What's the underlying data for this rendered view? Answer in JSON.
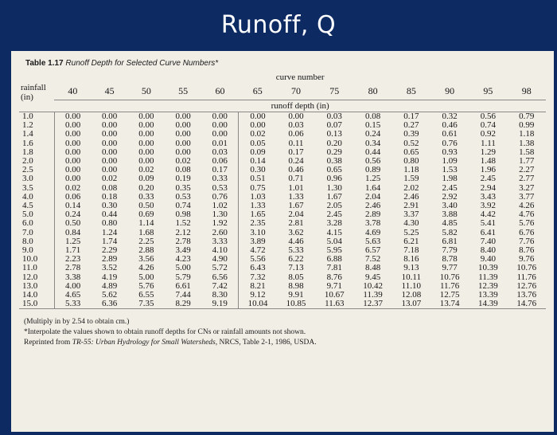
{
  "slide_title": "Runoff, Q",
  "caption": {
    "label": "Table 1.17",
    "text": "Runoff Depth for Selected Curve Numbers*"
  },
  "table": {
    "curve_number_label": "curve number",
    "runoff_depth_label": "runoff depth (in)",
    "rainfall_label_1": "rainfall",
    "rainfall_label_2": "(in)",
    "curve_numbers": [
      "40",
      "45",
      "50",
      "55",
      "60",
      "65",
      "70",
      "75",
      "80",
      "85",
      "90",
      "95",
      "98"
    ],
    "rows": [
      {
        "rain": "1.0",
        "values": [
          "0.00",
          "0.00",
          "0.00",
          "0.00",
          "0.00",
          "0.00",
          "0.00",
          "0.03",
          "0.08",
          "0.17",
          "0.32",
          "0.56",
          "0.79"
        ]
      },
      {
        "rain": "1.2",
        "values": [
          "0.00",
          "0.00",
          "0.00",
          "0.00",
          "0.00",
          "0.00",
          "0.03",
          "0.07",
          "0.15",
          "0.27",
          "0.46",
          "0.74",
          "0.99"
        ]
      },
      {
        "rain": "1.4",
        "values": [
          "0.00",
          "0.00",
          "0.00",
          "0.00",
          "0.00",
          "0.02",
          "0.06",
          "0.13",
          "0.24",
          "0.39",
          "0.61",
          "0.92",
          "1.18"
        ]
      },
      {
        "rain": "1.6",
        "values": [
          "0.00",
          "0.00",
          "0.00",
          "0.00",
          "0.01",
          "0.05",
          "0.11",
          "0.20",
          "0.34",
          "0.52",
          "0.76",
          "1.11",
          "1.38"
        ]
      },
      {
        "rain": "1.8",
        "values": [
          "0.00",
          "0.00",
          "0.00",
          "0.00",
          "0.03",
          "0.09",
          "0.17",
          "0.29",
          "0.44",
          "0.65",
          "0.93",
          "1.29",
          "1.58"
        ]
      },
      {
        "rain": "2.0",
        "values": [
          "0.00",
          "0.00",
          "0.00",
          "0.02",
          "0.06",
          "0.14",
          "0.24",
          "0.38",
          "0.56",
          "0.80",
          "1.09",
          "1.48",
          "1.77"
        ]
      },
      {
        "rain": "2.5",
        "values": [
          "0.00",
          "0.00",
          "0.02",
          "0.08",
          "0.17",
          "0.30",
          "0.46",
          "0.65",
          "0.89",
          "1.18",
          "1.53",
          "1.96",
          "2.27"
        ]
      },
      {
        "rain": "3.0",
        "values": [
          "0.00",
          "0.02",
          "0.09",
          "0.19",
          "0.33",
          "0.51",
          "0.71",
          "0.96",
          "1.25",
          "1.59",
          "1.98",
          "2.45",
          "2.77"
        ]
      },
      {
        "rain": "3.5",
        "values": [
          "0.02",
          "0.08",
          "0.20",
          "0.35",
          "0.53",
          "0.75",
          "1.01",
          "1.30",
          "1.64",
          "2.02",
          "2.45",
          "2.94",
          "3.27"
        ]
      },
      {
        "rain": "4.0",
        "values": [
          "0.06",
          "0.18",
          "0.33",
          "0.53",
          "0.76",
          "1.03",
          "1.33",
          "1.67",
          "2.04",
          "2.46",
          "2.92",
          "3.43",
          "3.77"
        ]
      },
      {
        "rain": "4.5",
        "values": [
          "0.14",
          "0.30",
          "0.50",
          "0.74",
          "1.02",
          "1.33",
          "1.67",
          "2.05",
          "2.46",
          "2.91",
          "3.40",
          "3.92",
          "4.26"
        ]
      },
      {
        "rain": "5.0",
        "values": [
          "0.24",
          "0.44",
          "0.69",
          "0.98",
          "1.30",
          "1.65",
          "2.04",
          "2.45",
          "2.89",
          "3.37",
          "3.88",
          "4.42",
          "4.76"
        ]
      },
      {
        "rain": "6.0",
        "values": [
          "0.50",
          "0.80",
          "1.14",
          "1.52",
          "1.92",
          "2.35",
          "2.81",
          "3.28",
          "3.78",
          "4.30",
          "4.85",
          "5.41",
          "5.76"
        ]
      },
      {
        "rain": "7.0",
        "values": [
          "0.84",
          "1.24",
          "1.68",
          "2.12",
          "2.60",
          "3.10",
          "3.62",
          "4.15",
          "4.69",
          "5.25",
          "5.82",
          "6.41",
          "6.76"
        ]
      },
      {
        "rain": "8.0",
        "values": [
          "1.25",
          "1.74",
          "2.25",
          "2.78",
          "3.33",
          "3.89",
          "4.46",
          "5.04",
          "5.63",
          "6.21",
          "6.81",
          "7.40",
          "7.76"
        ]
      },
      {
        "rain": "9.0",
        "values": [
          "1.71",
          "2.29",
          "2.88",
          "3.49",
          "4.10",
          "4.72",
          "5.33",
          "5.95",
          "6.57",
          "7.18",
          "7.79",
          "8.40",
          "8.76"
        ]
      },
      {
        "rain": "10.0",
        "values": [
          "2.23",
          "2.89",
          "3.56",
          "4.23",
          "4.90",
          "5.56",
          "6.22",
          "6.88",
          "7.52",
          "8.16",
          "8.78",
          "9.40",
          "9.76"
        ]
      },
      {
        "rain": "11.0",
        "values": [
          "2.78",
          "3.52",
          "4.26",
          "5.00",
          "5.72",
          "6.43",
          "7.13",
          "7.81",
          "8.48",
          "9.13",
          "9.77",
          "10.39",
          "10.76"
        ]
      },
      {
        "rain": "12.0",
        "values": [
          "3.38",
          "4.19",
          "5.00",
          "5.79",
          "6.56",
          "7.32",
          "8.05",
          "8.76",
          "9.45",
          "10.11",
          "10.76",
          "11.39",
          "11.76"
        ]
      },
      {
        "rain": "13.0",
        "values": [
          "4.00",
          "4.89",
          "5.76",
          "6.61",
          "7.42",
          "8.21",
          "8.98",
          "9.71",
          "10.42",
          "11.10",
          "11.76",
          "12.39",
          "12.76"
        ]
      },
      {
        "rain": "14.0",
        "values": [
          "4.65",
          "5.62",
          "6.55",
          "7.44",
          "8.30",
          "9.12",
          "9.91",
          "10.67",
          "11.39",
          "12.08",
          "12.75",
          "13.39",
          "13.76"
        ]
      },
      {
        "rain": "15.0",
        "values": [
          "5.33",
          "6.36",
          "7.35",
          "8.29",
          "9.19",
          "10.04",
          "10.85",
          "11.63",
          "12.37",
          "13.07",
          "13.74",
          "14.39",
          "14.76"
        ]
      }
    ]
  },
  "footnotes": {
    "multiply": "(Multiply in by 2.54 to obtain cm.)",
    "interpolate": "*Interpolate the values shown to obtain runoff depths for CNs or rainfall amounts not shown.",
    "reprinted_prefix": "Reprinted from ",
    "reprinted_source": "TR-55: Urban Hydrology for Small Watersheds",
    "reprinted_suffix": ", NRCS, Table 2-1, 1986, USDA."
  }
}
